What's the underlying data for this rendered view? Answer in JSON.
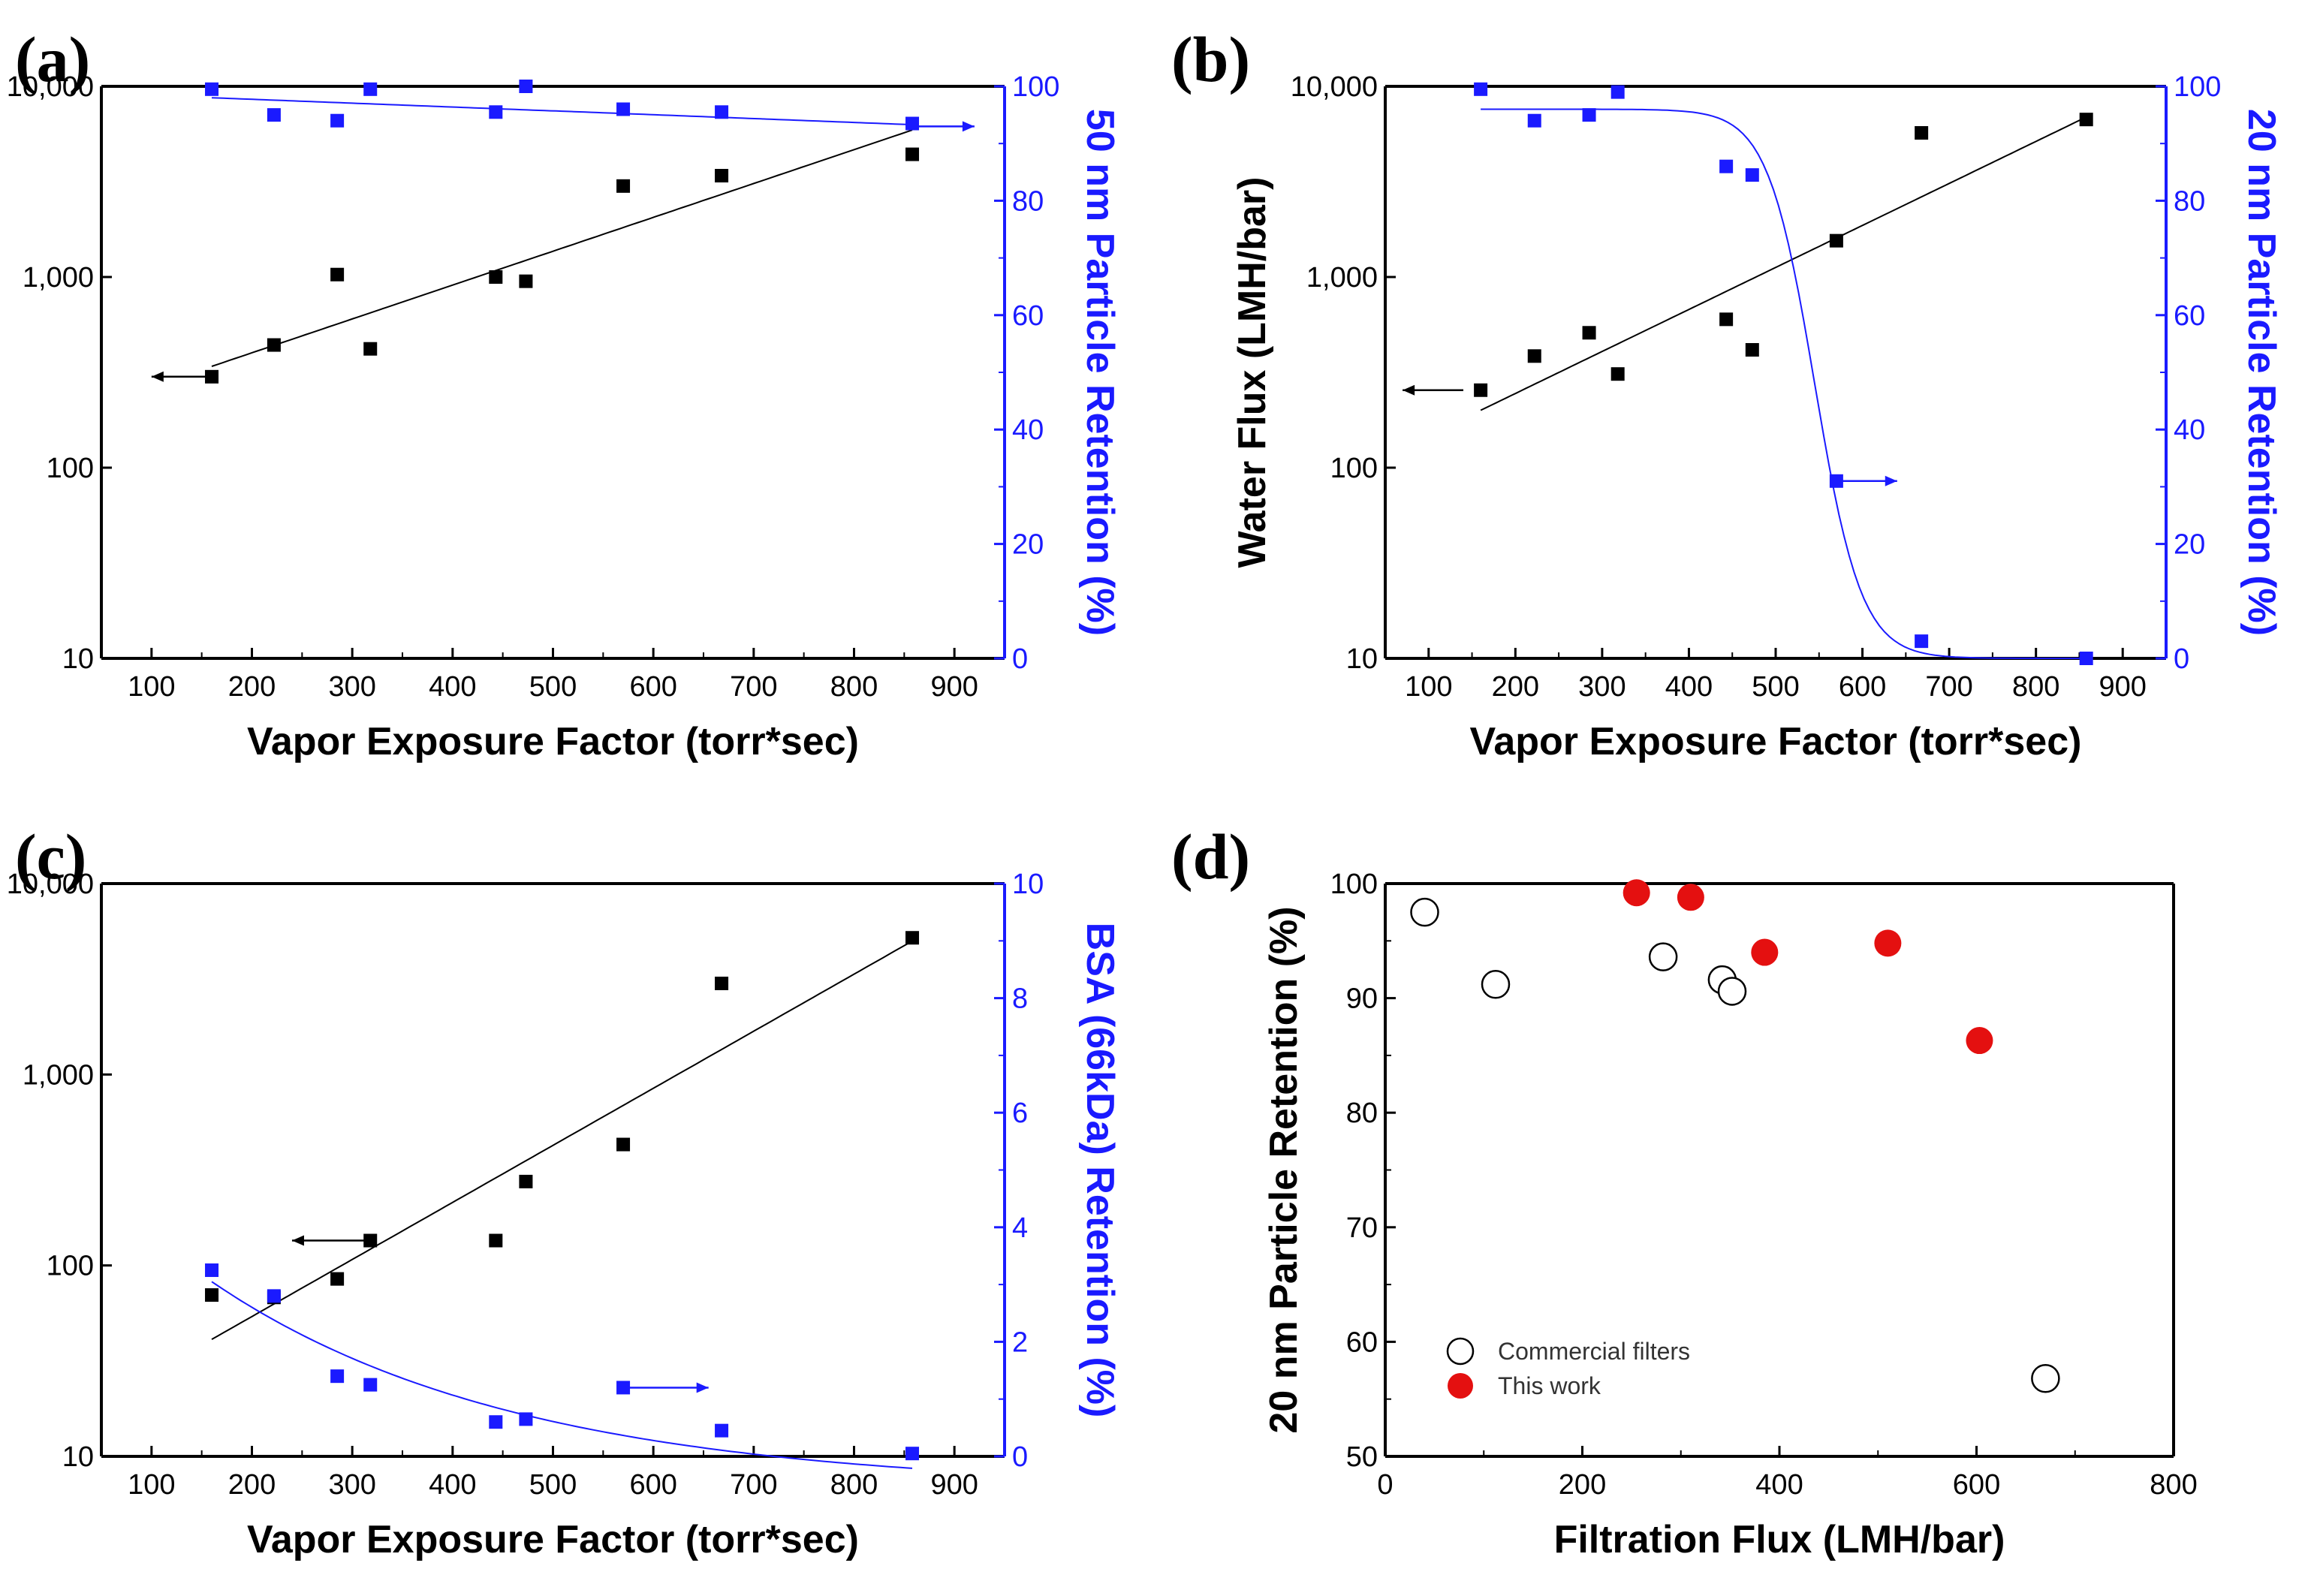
{
  "colors": {
    "black": "#000000",
    "blue": "#1a1aff",
    "red": "#e41010"
  },
  "chart_data": [
    {
      "id": "a",
      "panel_label": "(a)",
      "type": "scatter",
      "xlabel": "Vapor Exposure Factor (torr*sec)",
      "ylabel": "Water Flux (LMH/bar)",
      "y2label": "50 nm Particle Retention (%)",
      "xlim": [
        50,
        950
      ],
      "xticks": [
        100,
        200,
        300,
        400,
        500,
        600,
        700,
        800,
        900
      ],
      "xtick_labels": [
        "100",
        "200",
        "300",
        "400",
        "500",
        "600",
        "700",
        "800",
        "900"
      ],
      "y_scale": "log",
      "ylim": [
        10,
        10000
      ],
      "yticks": [
        10,
        100,
        1000,
        10000
      ],
      "ytick_labels": [
        "10",
        "100",
        "1,000",
        "10,000"
      ],
      "y2lim": [
        0,
        100
      ],
      "y2ticks": [
        0,
        20,
        40,
        60,
        80,
        100
      ],
      "y2tick_labels": [
        "0",
        "20",
        "40",
        "60",
        "80",
        "100"
      ],
      "series": [
        {
          "axis": "left",
          "color": "#000000",
          "marker": "square",
          "x": [
            160,
            222,
            285,
            318,
            443,
            473,
            570,
            668,
            858
          ],
          "y": [
            300,
            440,
            1030,
            420,
            1000,
            950,
            3000,
            3400,
            4400
          ]
        },
        {
          "axis": "right",
          "color": "#1a1aff",
          "marker": "square",
          "x": [
            160,
            222,
            285,
            318,
            443,
            473,
            570,
            668,
            858
          ],
          "y": [
            99.5,
            95,
            94,
            99.5,
            95.5,
            100,
            96,
            95.5,
            93.5
          ]
        }
      ],
      "fits": [
        {
          "axis": "left",
          "color": "#000000",
          "kind": "exp",
          "x_range": [
            160,
            858
          ],
          "y_start": 340,
          "y_end": 5900
        },
        {
          "axis": "right",
          "color": "#1a1aff",
          "kind": "linear",
          "x_range": [
            160,
            858
          ],
          "y_start": 98,
          "y_end": 93.3
        }
      ],
      "arrows": [
        {
          "axis": "left",
          "direction": "left",
          "x_from": 160,
          "x_to": 100,
          "y": 300
        },
        {
          "axis": "right",
          "direction": "right",
          "x_from": 858,
          "x_to": 920,
          "y": 93
        }
      ]
    },
    {
      "id": "b",
      "panel_label": "(b)",
      "type": "scatter",
      "xlabel": "Vapor Exposure Factor (torr*sec)",
      "ylabel": "Water Flux (LMH/bar)",
      "y2label": "20 nm Particle Retention (%)",
      "xlim": [
        50,
        950
      ],
      "xticks": [
        100,
        200,
        300,
        400,
        500,
        600,
        700,
        800,
        900
      ],
      "xtick_labels": [
        "100",
        "200",
        "300",
        "400",
        "500",
        "600",
        "700",
        "800",
        "900"
      ],
      "y_scale": "log",
      "ylim": [
        10,
        10000
      ],
      "yticks": [
        10,
        100,
        1000,
        10000
      ],
      "ytick_labels": [
        "10",
        "100",
        "1,000",
        "10,000"
      ],
      "y2lim": [
        0,
        100
      ],
      "y2ticks": [
        0,
        20,
        40,
        60,
        80,
        100
      ],
      "y2tick_labels": [
        "0",
        "20",
        "40",
        "60",
        "80",
        "100"
      ],
      "series": [
        {
          "axis": "left",
          "color": "#000000",
          "marker": "square",
          "x": [
            160,
            222,
            285,
            318,
            443,
            473,
            570,
            668,
            858
          ],
          "y": [
            255,
            385,
            510,
            310,
            600,
            415,
            1550,
            5700,
            6700
          ]
        },
        {
          "axis": "right",
          "color": "#1a1aff",
          "marker": "square",
          "x": [
            160,
            222,
            285,
            318,
            443,
            473,
            570,
            668,
            858
          ],
          "y": [
            99.5,
            94,
            95,
            99,
            86,
            84.5,
            31,
            3,
            0
          ]
        }
      ],
      "fits": [
        {
          "axis": "left",
          "color": "#000000",
          "kind": "exp",
          "x_range": [
            160,
            858
          ],
          "y_start": 200,
          "y_end": 6900
        },
        {
          "axis": "right",
          "color": "#1a1aff",
          "kind": "sigmoid",
          "x_range": [
            160,
            858
          ],
          "top": 96,
          "bottom": 0,
          "x0": 545,
          "width": 27
        }
      ],
      "arrows": [
        {
          "axis": "left",
          "direction": "left",
          "x_from": 140,
          "x_to": 70,
          "y": 255
        },
        {
          "axis": "right",
          "direction": "right",
          "x_from": 570,
          "x_to": 640,
          "y": 31
        }
      ]
    },
    {
      "id": "c",
      "panel_label": "(c)",
      "type": "scatter",
      "xlabel": "Vapor Exposure Factor (torr*sec)",
      "ylabel": "Water Flux (LMH/bar)",
      "y2label": "BSA (66kDa) Retention (%)",
      "xlim": [
        50,
        950
      ],
      "xticks": [
        100,
        200,
        300,
        400,
        500,
        600,
        700,
        800,
        900
      ],
      "xtick_labels": [
        "100",
        "200",
        "300",
        "400",
        "500",
        "600",
        "700",
        "800",
        "900"
      ],
      "y_scale": "log",
      "ylim": [
        10,
        10000
      ],
      "yticks": [
        10,
        100,
        1000,
        10000
      ],
      "ytick_labels": [
        "10",
        "100",
        "1,000",
        "10,000"
      ],
      "y2lim": [
        0,
        10
      ],
      "y2ticks": [
        0,
        2,
        4,
        6,
        8,
        10
      ],
      "y2tick_labels": [
        "0",
        "2",
        "4",
        "6",
        "8",
        "10"
      ],
      "series": [
        {
          "axis": "left",
          "color": "#000000",
          "marker": "square",
          "x": [
            160,
            222,
            285,
            318,
            443,
            473,
            570,
            668,
            858
          ],
          "y": [
            70,
            68,
            85,
            135,
            135,
            275,
            430,
            3000,
            5200
          ]
        },
        {
          "axis": "right",
          "color": "#1a1aff",
          "marker": "square",
          "x": [
            160,
            222,
            285,
            318,
            443,
            473,
            570,
            668,
            858
          ],
          "y": [
            3.25,
            2.8,
            1.4,
            1.25,
            0.6,
            0.65,
            1.2,
            0.45,
            0.05
          ]
        }
      ],
      "fits": [
        {
          "axis": "left",
          "color": "#000000",
          "kind": "exp",
          "x_range": [
            160,
            858
          ],
          "y_start": 41,
          "y_end": 5000
        },
        {
          "axis": "right",
          "color": "#1a1aff",
          "kind": "decay",
          "x_range": [
            160,
            858
          ],
          "y_start": 3.05,
          "y_end": -0.1,
          "offset": -0.57,
          "k": 0.0033
        }
      ],
      "arrows": [
        {
          "axis": "left",
          "direction": "left",
          "x_from": 318,
          "x_to": 240,
          "y": 135
        },
        {
          "axis": "right",
          "direction": "right",
          "x_from": 570,
          "x_to": 655,
          "y": 1.2
        }
      ]
    },
    {
      "id": "d",
      "panel_label": "(d)",
      "type": "scatter",
      "xlabel": "Filtration Flux (LMH/bar)",
      "ylabel": "20 nm Particle Retention (%)",
      "xlim": [
        0,
        800
      ],
      "xticks": [
        0,
        200,
        400,
        600,
        800
      ],
      "xtick_labels": [
        "0",
        "200",
        "400",
        "600",
        "800"
      ],
      "ylim": [
        50,
        100
      ],
      "yticks": [
        50,
        60,
        70,
        80,
        90,
        100
      ],
      "ytick_labels": [
        "50",
        "60",
        "70",
        "80",
        "90",
        "100"
      ],
      "legend_position": "bottom-left",
      "series": [
        {
          "name": "Commercial filters",
          "color": "#000000",
          "marker": "open-circle",
          "x": [
            40,
            112,
            282,
            342,
            352,
            670
          ],
          "y": [
            97.5,
            91.2,
            93.6,
            91.6,
            90.6,
            56.8
          ]
        },
        {
          "name": "This work",
          "color": "#e41010",
          "marker": "filled-circle",
          "x": [
            255,
            310,
            385,
            510,
            603
          ],
          "y": [
            99.2,
            98.8,
            94,
            94.8,
            86.3
          ]
        }
      ]
    }
  ]
}
